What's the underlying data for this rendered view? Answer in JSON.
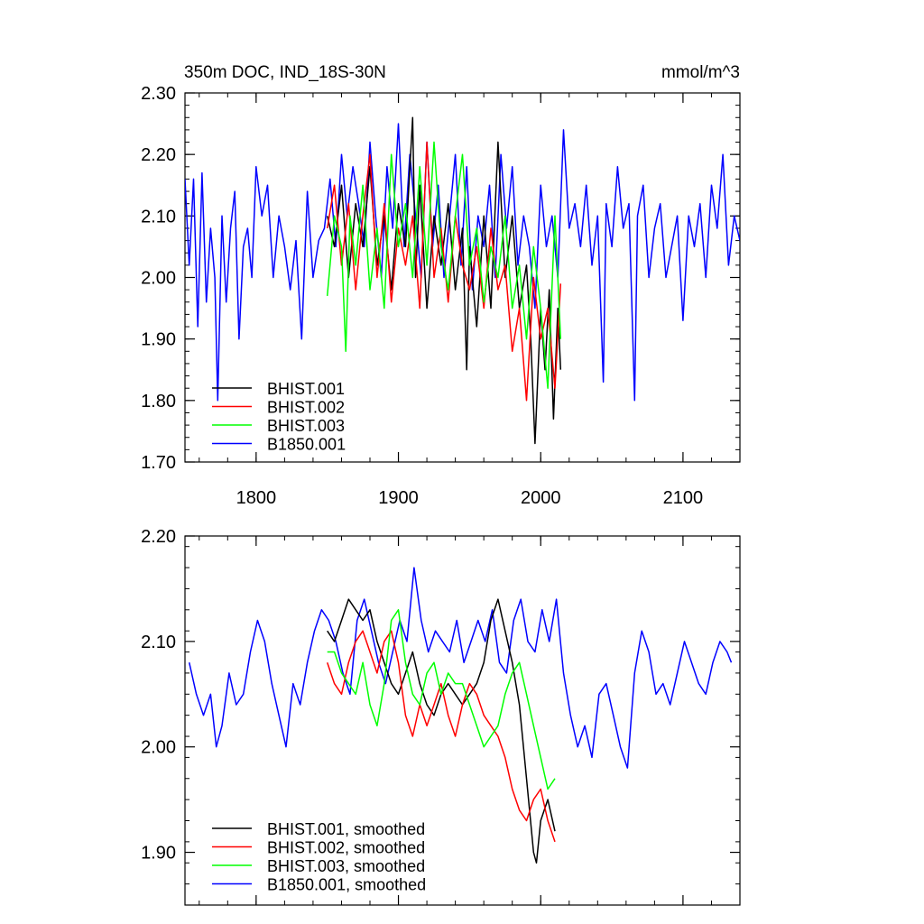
{
  "chart_data": [
    {
      "type": "line",
      "title": "350m DOC, IND_18S-30N",
      "units": "mmol/m^3",
      "xlim": [
        1750,
        2140
      ],
      "ylim": [
        1.7,
        2.3
      ],
      "x_ticks": [
        1800,
        1900,
        2000,
        2100
      ],
      "y_ticks": [
        1.7,
        1.8,
        1.9,
        2.0,
        2.1,
        2.2,
        2.3
      ],
      "y_tick_labels": [
        "1.70",
        "1.80",
        "1.90",
        "2.00",
        "2.10",
        "2.20",
        "2.30"
      ],
      "x_tick_labels": [
        "1800",
        "1900",
        "2000",
        "2100"
      ],
      "legend_position": "bottom-left",
      "series": [
        {
          "name": "BHIST.001",
          "color": "#000000",
          "x": [
            1850,
            1855,
            1860,
            1865,
            1870,
            1875,
            1880,
            1885,
            1890,
            1895,
            1900,
            1905,
            1910,
            1912,
            1915,
            1920,
            1925,
            1930,
            1935,
            1940,
            1945,
            1948,
            1950,
            1955,
            1960,
            1965,
            1970,
            1975,
            1980,
            1985,
            1990,
            1993,
            1996,
            2000,
            2003,
            2006,
            2009,
            2012,
            2014
          ],
          "y": [
            2.1,
            2.05,
            2.15,
            2.0,
            2.12,
            2.05,
            2.18,
            2.02,
            2.1,
            1.98,
            2.12,
            2.05,
            2.26,
            2.0,
            2.15,
            1.95,
            2.1,
            2.02,
            2.12,
            1.98,
            2.08,
            1.85,
            2.05,
            1.92,
            2.1,
            1.95,
            2.22,
            2.0,
            2.1,
            1.95,
            2.02,
            1.9,
            1.73,
            1.95,
            1.85,
            1.98,
            1.77,
            1.95,
            1.85
          ]
        },
        {
          "name": "BHIST.002",
          "color": "#ff0000",
          "x": [
            1850,
            1855,
            1860,
            1865,
            1870,
            1875,
            1880,
            1885,
            1890,
            1895,
            1900,
            1905,
            1910,
            1915,
            1920,
            1925,
            1930,
            1935,
            1940,
            1945,
            1950,
            1955,
            1960,
            1965,
            1970,
            1975,
            1980,
            1985,
            1990,
            1995,
            2000,
            2005,
            2010,
            2014
          ],
          "y": [
            2.08,
            2.15,
            2.02,
            2.12,
            1.98,
            2.1,
            2.2,
            2.0,
            2.12,
            1.96,
            2.08,
            2.02,
            2.1,
            1.95,
            2.22,
            2.0,
            2.08,
            1.96,
            2.1,
            2.02,
            1.98,
            2.05,
            1.95,
            2.08,
            1.98,
            2.02,
            1.88,
            1.95,
            1.8,
            2.0,
            1.9,
            1.95,
            1.82,
            1.99
          ]
        },
        {
          "name": "BHIST.003",
          "color": "#00ff00",
          "x": [
            1850,
            1855,
            1860,
            1863,
            1866,
            1870,
            1875,
            1880,
            1885,
            1890,
            1895,
            1900,
            1905,
            1910,
            1915,
            1920,
            1925,
            1930,
            1935,
            1940,
            1945,
            1950,
            1955,
            1960,
            1965,
            1970,
            1975,
            1980,
            1985,
            1990,
            1995,
            2000,
            2005,
            2010,
            2014
          ],
          "y": [
            1.97,
            2.1,
            2.05,
            1.88,
            2.1,
            2.02,
            2.15,
            1.98,
            2.08,
            1.95,
            2.2,
            2.05,
            2.12,
            2.0,
            2.18,
            2.02,
            2.22,
            2.05,
            1.98,
            2.1,
            2.2,
            2.02,
            2.08,
            1.96,
            2.05,
            2.0,
            2.1,
            1.95,
            2.02,
            1.9,
            2.05,
            1.95,
            1.82,
            2.1,
            1.9
          ]
        },
        {
          "name": "B1850.001",
          "color": "#0000ff",
          "x": [
            1750,
            1753,
            1756,
            1759,
            1762,
            1765,
            1768,
            1771,
            1773,
            1776,
            1779,
            1782,
            1785,
            1788,
            1791,
            1794,
            1797,
            1800,
            1804,
            1808,
            1812,
            1816,
            1820,
            1824,
            1828,
            1832,
            1836,
            1840,
            1844,
            1848,
            1852,
            1856,
            1860,
            1864,
            1868,
            1872,
            1876,
            1880,
            1884,
            1888,
            1892,
            1896,
            1900,
            1904,
            1908,
            1912,
            1916,
            1920,
            1924,
            1928,
            1932,
            1936,
            1940,
            1944,
            1948,
            1952,
            1956,
            1960,
            1964,
            1968,
            1972,
            1976,
            1980,
            1984,
            1988,
            1992,
            1996,
            2000,
            2004,
            2008,
            2012,
            2016,
            2020,
            2024,
            2028,
            2032,
            2036,
            2040,
            2044,
            2046,
            2050,
            2054,
            2058,
            2062,
            2066,
            2068,
            2072,
            2076,
            2080,
            2084,
            2088,
            2092,
            2096,
            2100,
            2104,
            2108,
            2112,
            2116,
            2120,
            2124,
            2128,
            2132,
            2136,
            2140
          ],
          "y": [
            2.16,
            2.02,
            2.16,
            1.92,
            2.17,
            1.96,
            2.08,
            2.0,
            1.8,
            2.1,
            1.96,
            2.08,
            2.14,
            1.9,
            2.05,
            2.08,
            2.0,
            2.18,
            2.1,
            2.15,
            2.0,
            2.1,
            2.05,
            1.98,
            2.06,
            1.9,
            2.14,
            2.0,
            2.06,
            2.08,
            2.16,
            2.05,
            2.2,
            2.1,
            2.18,
            2.12,
            2.05,
            2.22,
            2.1,
            2.0,
            2.18,
            2.08,
            2.25,
            2.05,
            2.2,
            2.1,
            2.0,
            2.22,
            2.05,
            2.15,
            2.0,
            2.1,
            2.2,
            2.02,
            2.18,
            1.98,
            2.1,
            2.05,
            2.15,
            2.0,
            2.2,
            2.08,
            2.18,
            2.02,
            2.1,
            2.05,
            1.95,
            2.15,
            2.05,
            2.1,
            2.0,
            2.24,
            2.08,
            2.12,
            2.05,
            2.15,
            2.02,
            2.1,
            1.83,
            2.12,
            2.05,
            2.18,
            2.08,
            2.12,
            1.8,
            2.1,
            2.15,
            2.0,
            2.08,
            2.12,
            2.0,
            2.05,
            2.1,
            1.93,
            2.1,
            2.05,
            2.12,
            2.0,
            2.15,
            2.08,
            2.2,
            2.02,
            2.1,
            2.06
          ]
        }
      ]
    },
    {
      "type": "line",
      "xlim": [
        1750,
        2140
      ],
      "ylim": [
        1.85,
        2.2
      ],
      "x_ticks": [
        1800,
        1900,
        2000,
        2100
      ],
      "y_ticks": [
        1.9,
        2.0,
        2.1,
        2.2
      ],
      "y_tick_labels": [
        "1.90",
        "2.00",
        "2.10",
        "2.20"
      ],
      "legend_position": "bottom-left",
      "series": [
        {
          "name": "BHIST.001, smoothed",
          "color": "#000000",
          "x": [
            1850,
            1855,
            1860,
            1865,
            1870,
            1875,
            1880,
            1885,
            1890,
            1895,
            1900,
            1905,
            1910,
            1915,
            1920,
            1925,
            1930,
            1935,
            1940,
            1945,
            1950,
            1955,
            1960,
            1965,
            1970,
            1975,
            1980,
            1985,
            1990,
            1995,
            1997,
            2000,
            2005,
            2010
          ],
          "y": [
            2.11,
            2.1,
            2.12,
            2.14,
            2.13,
            2.12,
            2.13,
            2.1,
            2.08,
            2.06,
            2.05,
            2.07,
            2.09,
            2.06,
            2.04,
            2.03,
            2.05,
            2.06,
            2.05,
            2.04,
            2.05,
            2.06,
            2.08,
            2.12,
            2.14,
            2.11,
            2.08,
            2.04,
            1.97,
            1.9,
            1.89,
            1.93,
            1.95,
            1.92
          ]
        },
        {
          "name": "BHIST.002, smoothed",
          "color": "#ff0000",
          "x": [
            1850,
            1855,
            1860,
            1865,
            1870,
            1875,
            1880,
            1885,
            1890,
            1895,
            1900,
            1905,
            1910,
            1915,
            1920,
            1925,
            1930,
            1935,
            1940,
            1945,
            1950,
            1955,
            1960,
            1965,
            1970,
            1975,
            1980,
            1985,
            1990,
            1995,
            2000,
            2005,
            2010
          ],
          "y": [
            2.08,
            2.06,
            2.05,
            2.08,
            2.1,
            2.11,
            2.09,
            2.07,
            2.1,
            2.11,
            2.08,
            2.03,
            2.01,
            2.04,
            2.02,
            2.04,
            2.06,
            2.03,
            2.01,
            2.04,
            2.06,
            2.05,
            2.03,
            2.02,
            2.01,
            1.99,
            1.96,
            1.94,
            1.93,
            1.95,
            1.96,
            1.93,
            1.91
          ]
        },
        {
          "name": "BHIST.003, smoothed",
          "color": "#00ff00",
          "x": [
            1850,
            1855,
            1860,
            1865,
            1870,
            1875,
            1880,
            1885,
            1890,
            1895,
            1900,
            1905,
            1910,
            1915,
            1920,
            1925,
            1930,
            1935,
            1940,
            1945,
            1950,
            1955,
            1960,
            1965,
            1970,
            1975,
            1980,
            1985,
            1990,
            1995,
            2000,
            2005,
            2010
          ],
          "y": [
            2.09,
            2.09,
            2.07,
            2.06,
            2.05,
            2.08,
            2.04,
            2.02,
            2.06,
            2.12,
            2.13,
            2.08,
            2.05,
            2.04,
            2.07,
            2.08,
            2.05,
            2.07,
            2.06,
            2.06,
            2.04,
            2.02,
            2.0,
            2.01,
            2.02,
            2.05,
            2.07,
            2.08,
            2.05,
            2.02,
            1.99,
            1.96,
            1.97
          ]
        },
        {
          "name": "B1850.001, smoothed",
          "color": "#0000ff",
          "x": [
            1753,
            1758,
            1763,
            1768,
            1772,
            1776,
            1781,
            1786,
            1791,
            1796,
            1801,
            1806,
            1811,
            1816,
            1821,
            1826,
            1831,
            1836,
            1841,
            1846,
            1851,
            1856,
            1861,
            1866,
            1871,
            1876,
            1881,
            1886,
            1891,
            1896,
            1901,
            1906,
            1911,
            1916,
            1921,
            1926,
            1931,
            1936,
            1941,
            1946,
            1951,
            1956,
            1961,
            1966,
            1971,
            1976,
            1981,
            1986,
            1991,
            1996,
            2001,
            2006,
            2011,
            2016,
            2021,
            2026,
            2031,
            2036,
            2041,
            2046,
            2051,
            2056,
            2061,
            2066,
            2071,
            2076,
            2081,
            2086,
            2091,
            2096,
            2101,
            2106,
            2111,
            2116,
            2121,
            2126,
            2131,
            2134
          ],
          "y": [
            2.08,
            2.05,
            2.03,
            2.05,
            2.0,
            2.02,
            2.07,
            2.04,
            2.05,
            2.09,
            2.12,
            2.1,
            2.06,
            2.03,
            2.0,
            2.06,
            2.04,
            2.08,
            2.11,
            2.13,
            2.12,
            2.1,
            2.07,
            2.05,
            2.12,
            2.14,
            2.11,
            2.08,
            2.06,
            2.09,
            2.12,
            2.1,
            2.17,
            2.12,
            2.09,
            2.11,
            2.1,
            2.09,
            2.12,
            2.08,
            2.1,
            2.12,
            2.1,
            2.13,
            2.08,
            2.07,
            2.12,
            2.14,
            2.1,
            2.09,
            2.13,
            2.1,
            2.14,
            2.07,
            2.03,
            2.0,
            2.02,
            1.99,
            2.05,
            2.06,
            2.03,
            2.0,
            1.98,
            2.07,
            2.11,
            2.09,
            2.05,
            2.06,
            2.04,
            2.07,
            2.1,
            2.08,
            2.06,
            2.05,
            2.08,
            2.1,
            2.09,
            2.08
          ]
        }
      ]
    }
  ]
}
